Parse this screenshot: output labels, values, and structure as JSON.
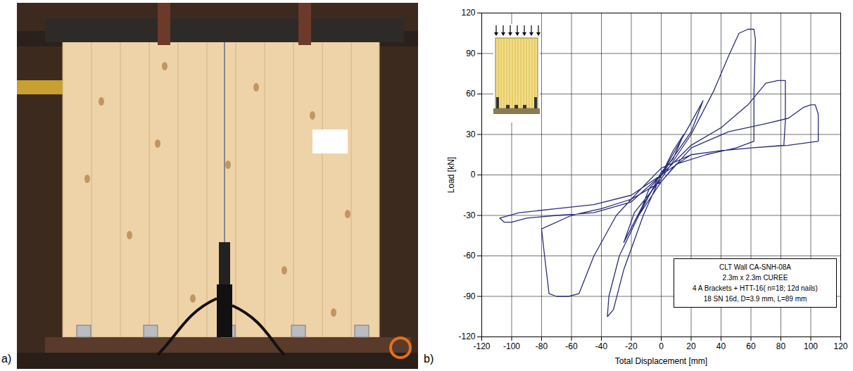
{
  "panel_labels": [
    "a)",
    "b)"
  ],
  "chart_data": {
    "type": "line",
    "xlabel": "Total Displacement [mm]",
    "ylabel": "Load [kN]",
    "annotation": [
      "CLT Wall CA-SNH-08A",
      "2.3m x 2.3m CUREE",
      "4 A Brackets + HTT-16( n=18; 12d nails)",
      "18 SN 16d, D=3.9 mm, L=89 mm"
    ],
    "color": "#2b2f7a",
    "grid": true,
    "xlim": [
      -120,
      120
    ],
    "xticks": [
      -120,
      -100,
      -80,
      -60,
      -40,
      -20,
      0,
      20,
      40,
      60,
      80,
      100,
      120
    ],
    "ylim": [
      -120,
      120
    ],
    "yticks": [
      -120,
      -90,
      -60,
      -30,
      0,
      30,
      60,
      90,
      120
    ],
    "x": [
      0,
      8,
      15,
      8,
      0,
      -8,
      -15,
      -8,
      0,
      18,
      28,
      20,
      5,
      -12,
      -25,
      -18,
      0,
      20,
      35,
      45,
      52,
      58,
      62,
      63,
      62,
      62,
      50,
      30,
      10,
      0,
      -15,
      -28,
      -35,
      -36,
      -32,
      -25,
      -12,
      0,
      20,
      40,
      58,
      70,
      78,
      83,
      83,
      82,
      60,
      40,
      20,
      0,
      -15,
      -30,
      -45,
      -55,
      -62,
      -70,
      -75,
      -78,
      -80,
      -60,
      -40,
      -20,
      0,
      20,
      45,
      70,
      85,
      95,
      100,
      103,
      105,
      105,
      85,
      60,
      40,
      20,
      0,
      -20,
      -45,
      -70,
      -90,
      -100,
      -105,
      -108,
      -95,
      -70,
      -45,
      -20,
      0
    ],
    "values": [
      0,
      18,
      30,
      12,
      2,
      -15,
      -30,
      -10,
      0,
      35,
      55,
      32,
      8,
      -22,
      -50,
      -28,
      -3,
      30,
      62,
      88,
      105,
      108,
      108,
      100,
      60,
      25,
      20,
      15,
      8,
      -5,
      -30,
      -60,
      -90,
      -105,
      -100,
      -70,
      -30,
      0,
      22,
      35,
      52,
      68,
      70,
      70,
      40,
      22,
      20,
      18,
      15,
      5,
      -12,
      -30,
      -60,
      -88,
      -90,
      -90,
      -88,
      -60,
      -40,
      -30,
      -25,
      -18,
      -5,
      20,
      32,
      38,
      42,
      50,
      52,
      52,
      45,
      25,
      22,
      20,
      18,
      15,
      0,
      -20,
      -28,
      -30,
      -32,
      -35,
      -35,
      -32,
      -28,
      -25,
      -22,
      -15,
      0
    ]
  }
}
